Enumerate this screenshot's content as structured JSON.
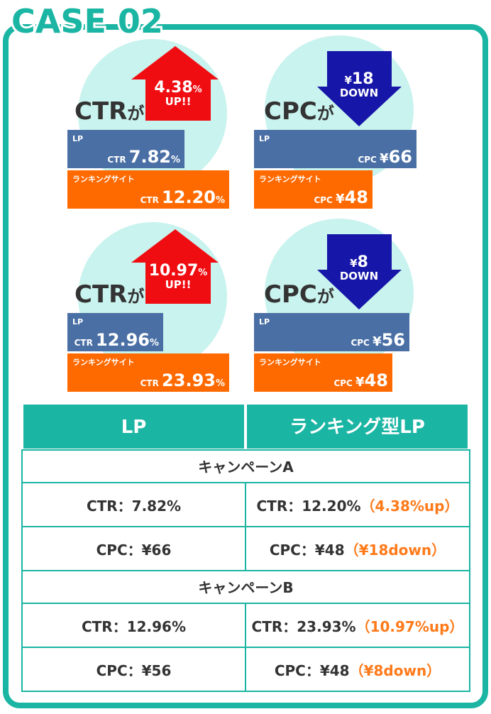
{
  "title": "CASE 02",
  "panels": [
    {
      "metric": "CTR",
      "particle": "が",
      "arrow": {
        "value": "4.38",
        "suffix": "%",
        "text": "UP!!"
      },
      "bars": [
        {
          "label": "LP",
          "metric": "CTR",
          "value": "7.82",
          "suffix": "%"
        },
        {
          "label": "ランキングサイト",
          "metric": "CTR",
          "value": "12.20",
          "suffix": "%"
        }
      ]
    },
    {
      "metric": "CPC",
      "particle": "が",
      "arrow": {
        "prefix": "¥",
        "value": "18",
        "text": "DOWN"
      },
      "bars": [
        {
          "label": "LP",
          "metric": "CPC",
          "prefix": "¥",
          "value": "66"
        },
        {
          "label": "ランキングサイト",
          "metric": "CPC",
          "prefix": "¥",
          "value": "48"
        }
      ]
    },
    {
      "metric": "CTR",
      "particle": "が",
      "arrow": {
        "value": "10.97",
        "suffix": "%",
        "text": "UP!!"
      },
      "bars": [
        {
          "label": "LP",
          "metric": "CTR",
          "value": "12.96",
          "suffix": "%"
        },
        {
          "label": "ランキングサイト",
          "metric": "CTR",
          "value": "23.93",
          "suffix": "%"
        }
      ]
    },
    {
      "metric": "CPC",
      "particle": "が",
      "arrow": {
        "prefix": "¥",
        "value": "8",
        "text": "DOWN"
      },
      "bars": [
        {
          "label": "LP",
          "metric": "CPC",
          "prefix": "¥",
          "value": "56"
        },
        {
          "label": "ランキングサイト",
          "metric": "CPC",
          "prefix": "¥",
          "value": "48"
        }
      ]
    }
  ],
  "table": {
    "header": [
      "LP",
      "ランキング型LP"
    ],
    "sections": [
      {
        "title": "キャンペーンA",
        "rows": [
          [
            {
              "text": "CTR：7.82%"
            },
            {
              "text": "CTR：12.20%",
              "note": "（4.38%up）"
            }
          ],
          [
            {
              "text": "CPC：¥66"
            },
            {
              "text": "CPC：¥48",
              "note": "（¥18down）"
            }
          ]
        ]
      },
      {
        "title": "キャンペーンB",
        "rows": [
          [
            {
              "text": "CTR：12.96%"
            },
            {
              "text": "CTR：23.93%",
              "note": "（10.97%up）"
            }
          ],
          [
            {
              "text": "CPC：¥56"
            },
            {
              "text": "CPC：¥48",
              "note": "（¥8down）"
            }
          ]
        ]
      }
    ]
  }
}
